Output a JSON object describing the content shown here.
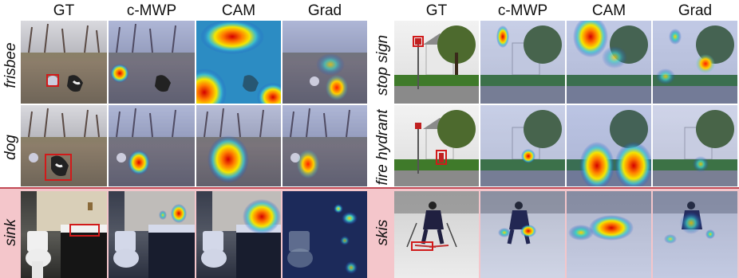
{
  "columns_left": [
    "GT",
    "c-MWP",
    "CAM",
    "Grad"
  ],
  "columns_right": [
    "GT",
    "c-MWP",
    "CAM",
    "Grad"
  ],
  "rows": {
    "frisbee": "frisbee",
    "dog": "dog",
    "sink": "sink",
    "stop_sign": "stop sign",
    "fire_hydrant": "fire hydrant",
    "skis": "skis"
  },
  "colors": {
    "separator": "#c24a55",
    "band": "#f4c6cb",
    "gt_box": "#d11a1a"
  }
}
